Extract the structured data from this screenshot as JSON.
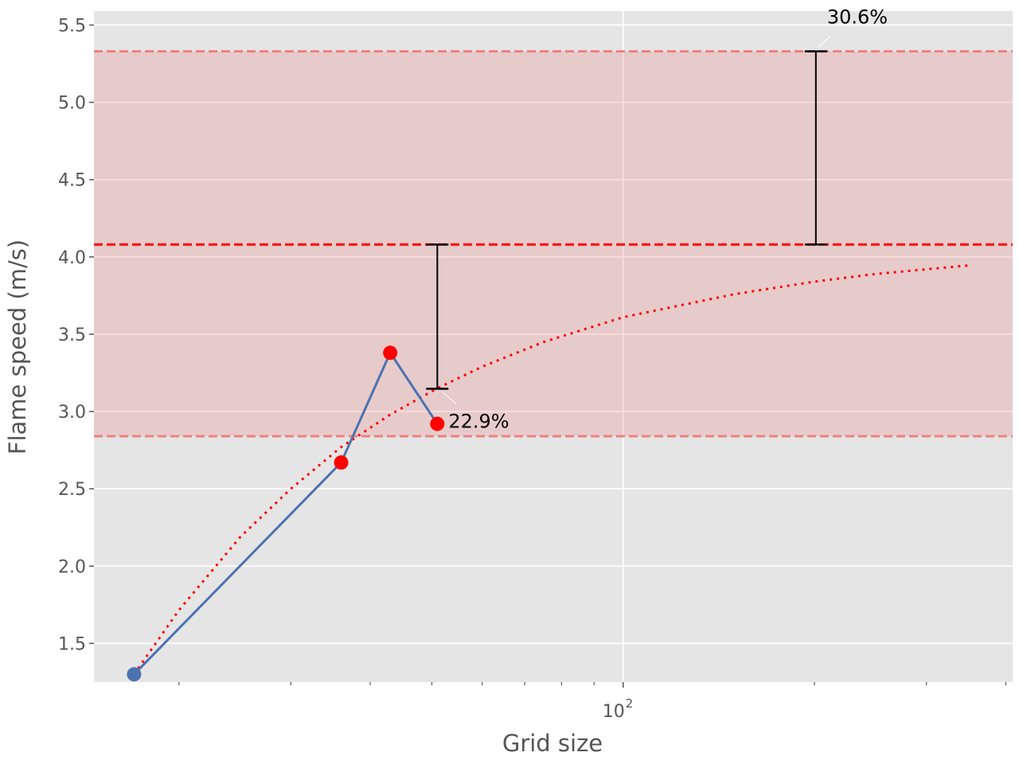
{
  "chart_data": {
    "type": "line",
    "title": "",
    "xlabel": "Grid size",
    "ylabel": "Flame speed (m/s)",
    "xscale": "log",
    "xlim": [
      14.7,
      410
    ],
    "ylim": [
      1.25,
      5.59
    ],
    "grid": true,
    "x_major_ticks": [
      {
        "value": 100,
        "label": "10",
        "exp": "2"
      }
    ],
    "x_minor_ticks": [
      20,
      30,
      40,
      50,
      60,
      70,
      80,
      90,
      200,
      300,
      400
    ],
    "y_ticks": [
      {
        "value": 1.5,
        "label": "1.5"
      },
      {
        "value": 2.0,
        "label": "2.0"
      },
      {
        "value": 2.5,
        "label": "2.5"
      },
      {
        "value": 3.0,
        "label": "3.0"
      },
      {
        "value": 3.5,
        "label": "3.5"
      },
      {
        "value": 4.0,
        "label": "4.0"
      },
      {
        "value": 4.5,
        "label": "4.5"
      },
      {
        "value": 5.0,
        "label": "5.0"
      },
      {
        "value": 5.5,
        "label": "5.5"
      }
    ],
    "simulation": {
      "x": [
        17,
        36,
        43,
        51
      ],
      "y": [
        1.3,
        2.67,
        3.38,
        2.92
      ],
      "line_color": "#4c72b0",
      "marker_colors": [
        "#4c72b0",
        "#ff0000",
        "#ff0000",
        "#ff0000"
      ]
    },
    "extrapolation": {
      "x": [
        17,
        20,
        25,
        30,
        36,
        43,
        51,
        60,
        75,
        100,
        150,
        200,
        250,
        300,
        350
      ],
      "y": [
        1.3,
        1.715,
        2.19,
        2.5,
        2.77,
        2.98,
        3.15,
        3.29,
        3.45,
        3.61,
        3.76,
        3.84,
        3.89,
        3.92,
        3.945
      ],
      "color": "#ff0000",
      "style": "dotted"
    },
    "reference": {
      "value": 4.08,
      "color": "#ff0000",
      "style": "dashed"
    },
    "band": {
      "low": 2.84,
      "high": 5.33,
      "color": "#f08080"
    },
    "error_bars": [
      {
        "x": 51,
        "y_low": 3.147,
        "y_high": 4.08,
        "label": "22.9%"
      },
      {
        "x": 201,
        "y_low": 4.08,
        "y_high": 5.33,
        "label": "30.6%"
      }
    ],
    "colors": {
      "background": "#e5e5e5",
      "grid": "#ffffff"
    }
  }
}
